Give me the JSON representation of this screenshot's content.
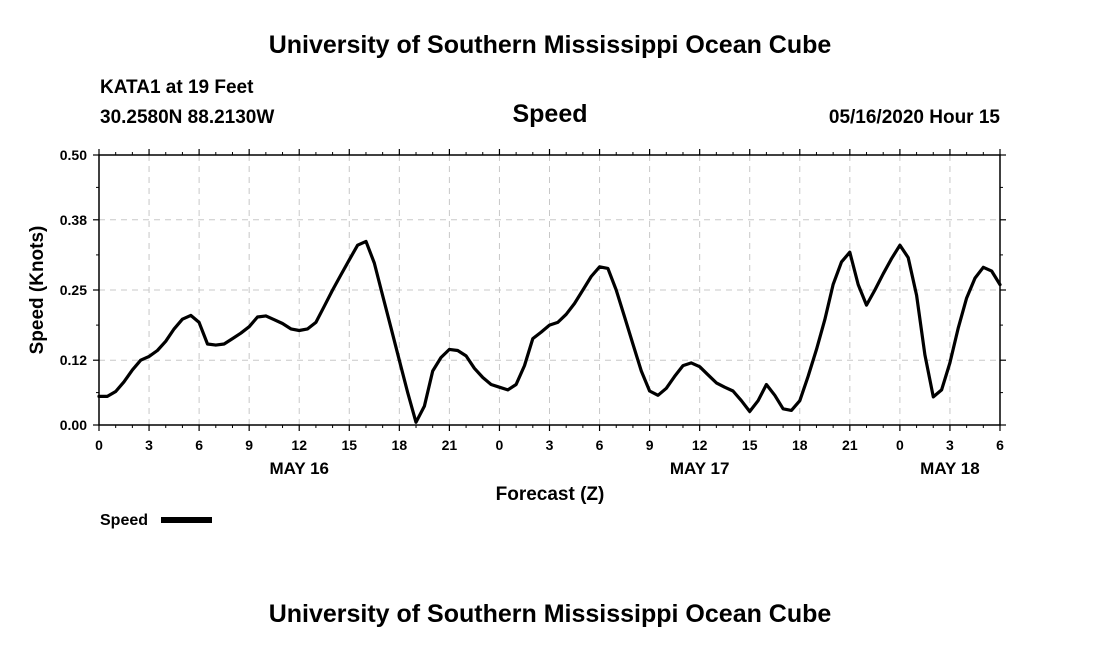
{
  "header": {
    "top_title": "University of Southern Mississippi Ocean Cube",
    "station": "KATA1 at 19 Feet",
    "coords": "30.2580N 88.2130W",
    "chart_title": "Speed",
    "datetime": "05/16/2020 Hour 15",
    "bottom_title": "University of Southern Mississippi Ocean Cube"
  },
  "legend": {
    "label": "Speed",
    "color": "#000000"
  },
  "chart_data": {
    "type": "line",
    "title": "Speed",
    "xlabel": "Forecast (Z)",
    "ylabel": "Speed (Knots)",
    "ylim": [
      0,
      0.5
    ],
    "xlim": [
      0,
      54
    ],
    "x_unit": "hours from May 16 00Z",
    "yticks": [
      0.0,
      0.12,
      0.25,
      0.38,
      0.5
    ],
    "ytick_labels": [
      "0.00",
      "0.12",
      "0.25",
      "0.38",
      "0.50"
    ],
    "xticks": [
      0,
      3,
      6,
      9,
      12,
      15,
      18,
      21,
      24,
      27,
      30,
      33,
      36,
      39,
      42,
      45,
      48,
      51,
      54
    ],
    "xtick_labels": [
      "0",
      "3",
      "6",
      "9",
      "12",
      "15",
      "18",
      "21",
      "0",
      "3",
      "6",
      "9",
      "12",
      "15",
      "18",
      "21",
      "0",
      "3",
      "6"
    ],
    "date_labels": [
      {
        "x": 12,
        "label": "MAY 16"
      },
      {
        "x": 36,
        "label": "MAY 17"
      },
      {
        "x": 51,
        "label": "MAY 18"
      }
    ],
    "grid": true,
    "legend_position": "bottom-left",
    "series": [
      {
        "name": "Speed",
        "color": "#000000",
        "x": [
          0,
          0.5,
          1,
          1.5,
          2,
          2.5,
          3,
          3.5,
          4,
          4.5,
          5,
          5.5,
          6,
          6.5,
          7,
          7.5,
          8,
          8.5,
          9,
          9.5,
          10,
          10.5,
          11,
          11.5,
          12,
          12.5,
          13,
          13.5,
          14,
          14.5,
          15,
          15.5,
          16,
          16.5,
          17,
          17.5,
          18,
          18.5,
          19,
          19.5,
          20,
          20.5,
          21,
          21.5,
          22,
          22.5,
          23,
          23.5,
          24,
          24.5,
          25,
          25.5,
          26,
          26.5,
          27,
          27.5,
          28,
          28.5,
          29,
          29.5,
          30,
          30.5,
          31,
          31.5,
          32,
          32.5,
          33,
          33.5,
          34,
          34.5,
          35,
          35.5,
          36,
          36.5,
          37,
          37.5,
          38,
          38.5,
          39,
          39.5,
          40,
          40.5,
          41,
          41.5,
          42,
          42.5,
          43,
          43.5,
          44,
          44.5,
          45,
          45.5,
          46,
          46.5,
          47,
          47.5,
          48,
          48.5,
          49,
          49.5,
          50,
          50.5,
          51,
          51.5,
          52,
          52.5,
          53,
          53.5,
          54
        ],
        "values": [
          0.053,
          0.053,
          0.062,
          0.08,
          0.102,
          0.12,
          0.127,
          0.138,
          0.155,
          0.178,
          0.196,
          0.203,
          0.19,
          0.15,
          0.148,
          0.15,
          0.16,
          0.17,
          0.182,
          0.2,
          0.202,
          0.195,
          0.188,
          0.178,
          0.175,
          0.178,
          0.19,
          0.22,
          0.25,
          0.278,
          0.306,
          0.333,
          0.34,
          0.3,
          0.24,
          0.18,
          0.12,
          0.06,
          0.005,
          0.035,
          0.1,
          0.125,
          0.14,
          0.138,
          0.128,
          0.105,
          0.088,
          0.075,
          0.07,
          0.065,
          0.075,
          0.11,
          0.16,
          0.172,
          0.185,
          0.19,
          0.205,
          0.225,
          0.25,
          0.275,
          0.293,
          0.29,
          0.25,
          0.2,
          0.15,
          0.1,
          0.063,
          0.055,
          0.068,
          0.09,
          0.11,
          0.115,
          0.108,
          0.093,
          0.078,
          0.07,
          0.063,
          0.045,
          0.025,
          0.045,
          0.075,
          0.055,
          0.03,
          0.027,
          0.045,
          0.09,
          0.14,
          0.195,
          0.26,
          0.302,
          0.32,
          0.26,
          0.222,
          0.25,
          0.28,
          0.308,
          0.333,
          0.31,
          0.24,
          0.13,
          0.052,
          0.065,
          0.115,
          0.18,
          0.235,
          0.272,
          0.292,
          0.285,
          0.26
        ]
      }
    ]
  }
}
